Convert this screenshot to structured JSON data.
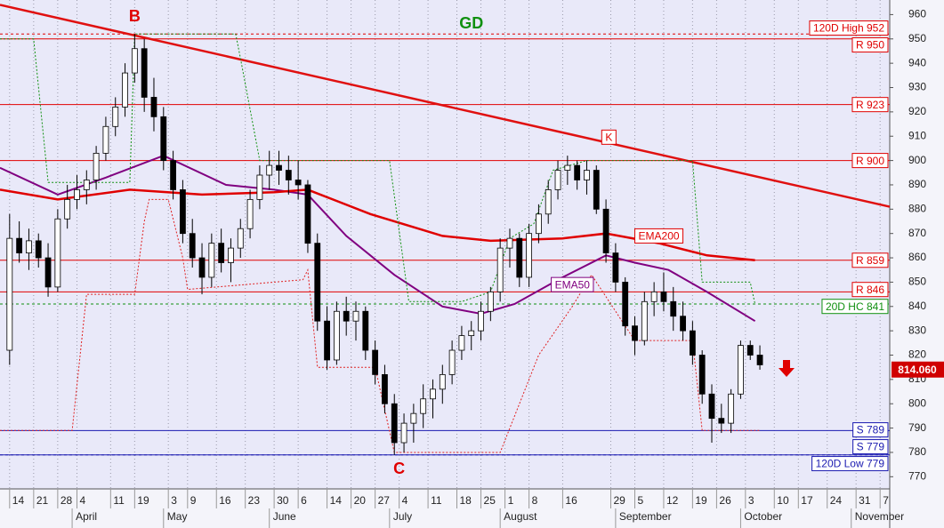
{
  "chart_data": {
    "type": "candlestick",
    "xlim": [
      -2,
      183
    ],
    "ylim": [
      765,
      966
    ],
    "yticks": [
      770,
      780,
      790,
      800,
      810,
      820,
      830,
      840,
      850,
      860,
      870,
      880,
      890,
      900,
      910,
      920,
      930,
      940,
      950,
      960
    ],
    "xticks": [
      {
        "value": 0,
        "label": "14"
      },
      {
        "value": 5,
        "label": "21"
      },
      {
        "value": 10,
        "label": "28"
      },
      {
        "value": 14,
        "label": "4"
      },
      {
        "value": 21,
        "label": "11"
      },
      {
        "value": 26,
        "label": "19"
      },
      {
        "value": 33,
        "label": "3"
      },
      {
        "value": 37,
        "label": "9"
      },
      {
        "value": 43,
        "label": "16"
      },
      {
        "value": 49,
        "label": "23"
      },
      {
        "value": 55,
        "label": "30"
      },
      {
        "value": 60,
        "label": "6"
      },
      {
        "value": 66,
        "label": "14"
      },
      {
        "value": 71,
        "label": "20"
      },
      {
        "value": 76,
        "label": "27"
      },
      {
        "value": 81,
        "label": "4"
      },
      {
        "value": 87,
        "label": "11"
      },
      {
        "value": 93,
        "label": "18"
      },
      {
        "value": 98,
        "label": "25"
      },
      {
        "value": 103,
        "label": "1"
      },
      {
        "value": 108,
        "label": "8"
      },
      {
        "value": 115,
        "label": "16"
      },
      {
        "value": 125,
        "label": "29"
      },
      {
        "value": 130,
        "label": "5"
      },
      {
        "value": 136,
        "label": "12"
      },
      {
        "value": 142,
        "label": "19"
      },
      {
        "value": 147,
        "label": "26"
      },
      {
        "value": 153,
        "label": "3"
      },
      {
        "value": 159,
        "label": "10"
      },
      {
        "value": 164,
        "label": "17"
      },
      {
        "value": 170,
        "label": "24"
      },
      {
        "value": 176,
        "label": "31"
      },
      {
        "value": 181,
        "label": "7"
      }
    ],
    "months": [
      {
        "value": 13,
        "label": "April"
      },
      {
        "value": 32,
        "label": "May"
      },
      {
        "value": 54,
        "label": "June"
      },
      {
        "value": 79,
        "label": "July"
      },
      {
        "value": 102,
        "label": "August"
      },
      {
        "value": 126,
        "label": "September"
      },
      {
        "value": 152,
        "label": "October"
      },
      {
        "value": 175,
        "label": "November"
      }
    ],
    "grid": true,
    "up_color": "#ffffff",
    "down_color": "#000000",
    "candles": {
      "x": [
        0,
        2,
        4,
        6,
        8,
        10,
        12,
        14,
        16,
        18,
        20,
        22,
        24,
        26,
        28,
        30,
        32,
        34,
        36,
        38,
        40,
        42,
        44,
        46,
        48,
        50,
        52,
        54,
        56,
        58,
        60,
        62,
        64,
        66,
        68,
        70,
        72,
        74,
        76,
        78,
        80,
        82,
        84,
        86,
        88,
        90,
        92,
        94,
        96,
        98,
        100,
        102,
        104,
        106,
        108,
        110,
        112,
        114,
        116,
        118,
        120,
        122,
        124,
        126,
        128,
        130,
        132,
        134,
        136,
        138,
        140,
        142,
        144,
        146,
        148,
        150,
        152,
        154,
        156
      ],
      "open": [
        822,
        868,
        862,
        867,
        860,
        848,
        876,
        884,
        888,
        892,
        903,
        914,
        922,
        936,
        946,
        926,
        918,
        900,
        888,
        870,
        860,
        852,
        866,
        858,
        864,
        872,
        884,
        894,
        898,
        896,
        892,
        890,
        866,
        834,
        818,
        838,
        834,
        838,
        822,
        812,
        800,
        784,
        792,
        796,
        802,
        806,
        812,
        822,
        828,
        830,
        838,
        846,
        864,
        868,
        852,
        870,
        878,
        888,
        896,
        898,
        892,
        896,
        880,
        862,
        850,
        832,
        826,
        842,
        846,
        842,
        836,
        830,
        820,
        804,
        794,
        792,
        804,
        824,
        820
      ],
      "high": [
        878,
        875,
        872,
        870,
        866,
        880,
        890,
        894,
        896,
        906,
        918,
        926,
        940,
        952,
        950,
        934,
        922,
        904,
        892,
        876,
        866,
        870,
        872,
        868,
        876,
        888,
        898,
        904,
        904,
        902,
        900,
        892,
        870,
        840,
        842,
        844,
        842,
        840,
        826,
        816,
        804,
        796,
        800,
        808,
        810,
        816,
        826,
        832,
        834,
        842,
        848,
        868,
        872,
        870,
        874,
        882,
        892,
        900,
        902,
        900,
        900,
        898,
        884,
        866,
        852,
        836,
        846,
        850,
        854,
        848,
        842,
        834,
        822,
        808,
        800,
        806,
        826,
        826,
        824
      ],
      "low": [
        816,
        858,
        855,
        856,
        844,
        846,
        872,
        880,
        882,
        888,
        900,
        910,
        918,
        932,
        920,
        912,
        896,
        884,
        866,
        856,
        845,
        848,
        854,
        850,
        860,
        868,
        880,
        888,
        890,
        886,
        884,
        862,
        830,
        814,
        816,
        828,
        826,
        818,
        808,
        796,
        779,
        780,
        784,
        790,
        794,
        800,
        808,
        818,
        822,
        826,
        834,
        842,
        856,
        848,
        848,
        866,
        874,
        884,
        890,
        888,
        886,
        878,
        858,
        846,
        828,
        820,
        824,
        836,
        838,
        830,
        826,
        816,
        800,
        784,
        788,
        788,
        802,
        818,
        814
      ],
      "close": [
        868,
        862,
        867,
        860,
        848,
        876,
        884,
        888,
        892,
        903,
        914,
        922,
        936,
        946,
        926,
        918,
        900,
        888,
        870,
        860,
        852,
        866,
        858,
        864,
        872,
        884,
        894,
        898,
        896,
        892,
        890,
        866,
        834,
        818,
        838,
        834,
        838,
        822,
        812,
        800,
        784,
        792,
        796,
        802,
        806,
        812,
        822,
        828,
        830,
        838,
        846,
        864,
        868,
        852,
        870,
        878,
        888,
        896,
        898,
        892,
        896,
        880,
        862,
        850,
        832,
        826,
        842,
        846,
        842,
        836,
        830,
        820,
        804,
        794,
        792,
        804,
        824,
        820,
        816
      ]
    },
    "lines": [
      {
        "name": "EMA50",
        "color": "#800080",
        "width": 2,
        "dash": false,
        "x": [
          -2,
          10,
          20,
          32,
          45,
          55,
          62,
          70,
          80,
          90,
          98,
          105,
          115,
          124,
          130,
          137,
          145,
          155
        ],
        "values": [
          897,
          886,
          893,
          902,
          890,
          888,
          886,
          869,
          853,
          840,
          837,
          841,
          852,
          861,
          858,
          855,
          846,
          834
        ]
      },
      {
        "name": "EMA200",
        "color": "#e00000",
        "width": 2.5,
        "dash": false,
        "x": [
          -2,
          10,
          25,
          40,
          55,
          62,
          75,
          90,
          100,
          115,
          124,
          135,
          145,
          155
        ],
        "values": [
          888,
          884,
          888,
          886,
          887,
          888,
          878,
          869,
          867,
          868,
          870,
          866,
          861,
          859
        ]
      },
      {
        "name": "20D HC",
        "color": "#109010",
        "width": 1,
        "dash": true,
        "x": [
          -2,
          5,
          8,
          25,
          26,
          47,
          48,
          52,
          79,
          83,
          94,
          100,
          104,
          109,
          113,
          120,
          142,
          144,
          154,
          155
        ],
        "values": [
          950,
          950,
          891,
          891,
          952,
          952,
          942,
          900,
          900,
          842,
          842,
          846,
          868,
          874,
          896,
          900,
          900,
          850,
          850,
          841
        ]
      },
      {
        "name": "20D LC",
        "color": "#e02020",
        "width": 1,
        "dash": true,
        "x": [
          -2,
          13,
          16,
          26,
          28,
          29,
          33,
          36,
          37,
          61,
          62,
          64,
          76,
          80,
          102,
          110,
          117,
          121,
          130,
          142,
          144,
          156
        ],
        "values": [
          789,
          789,
          845,
          845,
          875,
          884,
          884,
          860,
          847,
          851,
          855,
          815,
          815,
          780,
          780,
          820,
          840,
          853,
          826,
          826,
          789,
          789
        ]
      }
    ],
    "trendline": {
      "x": [
        -2,
        183
      ],
      "values": [
        964,
        881
      ],
      "color": "#e01010"
    },
    "levels": [
      {
        "label": "120D High 952",
        "value": 952,
        "color": "#e00000",
        "dash": true
      },
      {
        "label": "R 950",
        "value": 950,
        "color": "#e00000",
        "dash": false
      },
      {
        "label": "R 923",
        "value": 923,
        "color": "#e00000",
        "dash": false
      },
      {
        "label": "R 900",
        "value": 900,
        "color": "#e00000",
        "dash": false
      },
      {
        "label": "R 859",
        "value": 859,
        "color": "#e00000",
        "dash": false
      },
      {
        "label": "R 846",
        "value": 846,
        "color": "#e00000",
        "dash": false
      },
      {
        "label": "20D HC 841",
        "value": 841,
        "color": "#109010",
        "dash": true
      },
      {
        "label": "S 789",
        "value": 789,
        "color": "#1a1ab0",
        "dash": false
      },
      {
        "label": "S 779",
        "value": 779,
        "color": "#1a1ab0",
        "dash": false
      },
      {
        "label": "120D Low 779",
        "value": 779,
        "color": "#1a1ab0",
        "dash": true
      }
    ],
    "annotations": [
      {
        "text": "B",
        "x": 26,
        "value": 959,
        "color": "#e00000",
        "boxed": false
      },
      {
        "text": "C",
        "x": 81,
        "value": 773,
        "color": "#e00000",
        "boxed": false
      },
      {
        "text": "GD",
        "x": 96,
        "value": 956,
        "color": "#109010",
        "boxed": false
      },
      {
        "text": "K",
        "x": 124.6,
        "value": 909.6,
        "color": "#e00000",
        "boxed": true
      },
      {
        "text": "EMA200",
        "x": 135,
        "value": 869,
        "color": "#e00000",
        "boxed": true
      },
      {
        "text": "EMA50",
        "x": 117,
        "value": 849,
        "color": "#800080",
        "boxed": true
      }
    ],
    "last_price": {
      "value": 814.06,
      "label": "814.060"
    }
  }
}
